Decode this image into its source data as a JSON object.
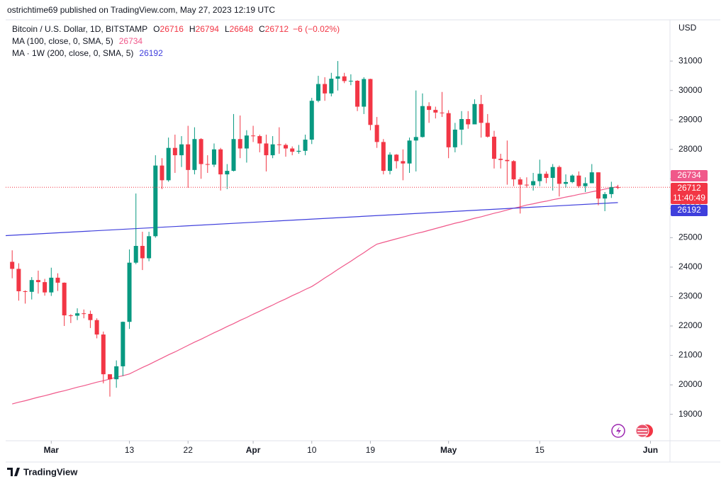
{
  "header": "ostrichtime69 published on TradingView.com, May 27, 2023 12:19 UTC",
  "footer": "TradingView",
  "chart_data": {
    "type": "candlestick",
    "title": "Bitcoin / U.S. Dollar, 1D, BITSTAMP",
    "ohlc_legend": [
      {
        "label": "O",
        "value": 26716
      },
      {
        "label": "H",
        "value": 26794
      },
      {
        "label": "L",
        "value": 26648
      },
      {
        "label": "C",
        "value": 26712
      }
    ],
    "change_label": "−6 (−0.02%)",
    "countdown": "11:40:49",
    "y_axis_label": "USD",
    "up_color": "#089981",
    "down_color": "#f23645",
    "x": [
      "2023-02-23",
      "2023-02-24",
      "2023-02-25",
      "2023-02-26",
      "2023-02-27",
      "2023-02-28",
      "2023-03-01",
      "2023-03-02",
      "2023-03-03",
      "2023-03-04",
      "2023-03-05",
      "2023-03-06",
      "2023-03-07",
      "2023-03-08",
      "2023-03-09",
      "2023-03-10",
      "2023-03-11",
      "2023-03-12",
      "2023-03-13",
      "2023-03-14",
      "2023-03-15",
      "2023-03-16",
      "2023-03-17",
      "2023-03-18",
      "2023-03-19",
      "2023-03-20",
      "2023-03-21",
      "2023-03-22",
      "2023-03-23",
      "2023-03-24",
      "2023-03-25",
      "2023-03-26",
      "2023-03-27",
      "2023-03-28",
      "2023-03-29",
      "2023-03-30",
      "2023-03-31",
      "2023-04-01",
      "2023-04-02",
      "2023-04-03",
      "2023-04-04",
      "2023-04-05",
      "2023-04-06",
      "2023-04-07",
      "2023-04-08",
      "2023-04-09",
      "2023-04-10",
      "2023-04-11",
      "2023-04-12",
      "2023-04-13",
      "2023-04-14",
      "2023-04-15",
      "2023-04-16",
      "2023-04-17",
      "2023-04-18",
      "2023-04-19",
      "2023-04-20",
      "2023-04-21",
      "2023-04-22",
      "2023-04-23",
      "2023-04-24",
      "2023-04-25",
      "2023-04-26",
      "2023-04-27",
      "2023-04-28",
      "2023-04-29",
      "2023-04-30",
      "2023-05-01",
      "2023-05-02",
      "2023-05-03",
      "2023-05-04",
      "2023-05-05",
      "2023-05-06",
      "2023-05-07",
      "2023-05-08",
      "2023-05-09",
      "2023-05-10",
      "2023-05-11",
      "2023-05-12",
      "2023-05-13",
      "2023-05-14",
      "2023-05-15",
      "2023-05-16",
      "2023-05-17",
      "2023-05-18",
      "2023-05-19",
      "2023-05-20",
      "2023-05-21",
      "2023-05-22",
      "2023-05-23",
      "2023-05-24",
      "2023-05-25",
      "2023-05-26",
      "2023-05-27"
    ],
    "open": [
      24180,
      23940,
      23180,
      23160,
      23560,
      23490,
      23140,
      23640,
      23470,
      22360,
      22350,
      22430,
      22410,
      22200,
      21710,
      20360,
      20190,
      20630,
      22140,
      24150,
      24720,
      24300,
      25050,
      27450,
      26950,
      28050,
      27800,
      28170,
      27300,
      28350,
      27500,
      27480,
      28000,
      27150,
      27270,
      28350,
      28030,
      28470,
      28450,
      28200,
      27800,
      28170,
      28150,
      28030,
      27920,
      27950,
      28330,
      29650,
      30220,
      29900,
      30400,
      30480,
      30320,
      30330,
      29450,
      30390,
      28830,
      28250,
      27270,
      27820,
      27600,
      27520,
      28300,
      28420,
      29470,
      29340,
      29250,
      29230,
      28070,
      28670,
      29030,
      28850,
      29540,
      28900,
      28430,
      27680,
      27640,
      27600,
      26980,
      26800,
      26780,
      26920,
      27170,
      27030,
      27400,
      26830,
      26890,
      27110,
      26750,
      26850,
      27220,
      26330,
      26480,
      26716
    ],
    "high": [
      24570,
      24130,
      23210,
      23660,
      23880,
      23600,
      23980,
      23790,
      23480,
      22400,
      22600,
      22560,
      22520,
      22260,
      21810,
      20360,
      20830,
      22150,
      24600,
      26500,
      25200,
      25200,
      27800,
      27700,
      28400,
      28500,
      28450,
      28800,
      28750,
      28380,
      27800,
      28200,
      28050,
      27500,
      29200,
      29150,
      28650,
      28800,
      28500,
      28500,
      28450,
      28750,
      28200,
      28100,
      28150,
      28500,
      29750,
      30500,
      30450,
      30600,
      31000,
      30600,
      30550,
      30350,
      30450,
      30400,
      29100,
      28350,
      27900,
      27840,
      28000,
      28400,
      30000,
      29900,
      29600,
      29450,
      29950,
      29330,
      28900,
      29300,
      29300,
      29700,
      29850,
      29200,
      28630,
      27850,
      28300,
      27630,
      27050,
      27050,
      27200,
      27650,
      27250,
      27500,
      27450,
      27150,
      27150,
      27250,
      27050,
      27500,
      27220,
      26550,
      26900,
      26794
    ],
    "low": [
      23620,
      22860,
      22760,
      22900,
      23100,
      23030,
      23020,
      23190,
      22000,
      22100,
      22200,
      22260,
      21930,
      21580,
      20050,
      19600,
      19900,
      20300,
      21900,
      24100,
      23900,
      24200,
      25000,
      26650,
      26900,
      27200,
      27400,
      26700,
      27150,
      27000,
      27200,
      27400,
      26600,
      26650,
      27250,
      27700,
      27550,
      28250,
      27900,
      27250,
      27700,
      27850,
      27750,
      27800,
      27850,
      27800,
      28180,
      29600,
      29650,
      29800,
      30000,
      30250,
      30180,
      29300,
      29200,
      28650,
      28050,
      27150,
      27150,
      27350,
      26950,
      27200,
      27250,
      28400,
      28900,
      29050,
      29100,
      27700,
      27900,
      28150,
      28700,
      28850,
      28400,
      28400,
      27350,
      27350,
      26800,
      26750,
      25820,
      26700,
      26600,
      26750,
      26850,
      26600,
      26400,
      26700,
      26850,
      26700,
      26550,
      26850,
      26100,
      25900,
      26350,
      26648
    ],
    "close": [
      23940,
      23180,
      23160,
      23560,
      23490,
      23140,
      23640,
      23470,
      22360,
      22350,
      22430,
      22410,
      22200,
      21710,
      20360,
      20190,
      20630,
      22140,
      24150,
      24720,
      24300,
      25050,
      27450,
      26950,
      28050,
      27800,
      28170,
      27300,
      28350,
      27500,
      27480,
      28000,
      27150,
      27270,
      28350,
      28030,
      28470,
      28450,
      28200,
      27800,
      28170,
      28150,
      28030,
      27920,
      27950,
      28330,
      29650,
      30220,
      29900,
      30400,
      30480,
      30320,
      30330,
      29450,
      30390,
      28830,
      28250,
      27270,
      27820,
      27600,
      27520,
      28300,
      28420,
      29470,
      29340,
      29250,
      29230,
      28070,
      28670,
      29030,
      28850,
      29540,
      28900,
      28430,
      27680,
      27640,
      27600,
      26980,
      26800,
      26780,
      26920,
      27170,
      27030,
      27400,
      26830,
      26890,
      27110,
      26750,
      26850,
      27220,
      26330,
      26480,
      26720,
      26712
    ],
    "series": [
      {
        "name": "MA (100, close, 0, SMA, 5)",
        "color": "#f0588a",
        "values": [
          19350,
          19410,
          19460,
          19520,
          19580,
          19630,
          19690,
          19750,
          19800,
          19860,
          19920,
          19970,
          20030,
          20090,
          20140,
          20200,
          20260,
          20310,
          20370,
          20480,
          20590,
          20690,
          20800,
          20910,
          21020,
          21120,
          21230,
          21340,
          21450,
          21550,
          21660,
          21770,
          21870,
          21980,
          22080,
          22190,
          22290,
          22400,
          22500,
          22610,
          22710,
          22820,
          22920,
          23030,
          23130,
          23240,
          23340,
          23480,
          23630,
          23770,
          23920,
          24060,
          24200,
          24350,
          24490,
          24640,
          24780,
          24840,
          24900,
          24960,
          25020,
          25080,
          25140,
          25190,
          25250,
          25310,
          25370,
          25430,
          25490,
          25540,
          25600,
          25660,
          25710,
          25770,
          25830,
          25880,
          25940,
          26000,
          26050,
          26110,
          26150,
          26200,
          26240,
          26290,
          26330,
          26380,
          26420,
          26470,
          26510,
          26560,
          26600,
          26650,
          26690,
          26734
        ]
      },
      {
        "name": "MA · 1W (200, close, 0, SMA, 5)",
        "color": "#3f3fdc",
        "x": [
          "2023-02-22",
          "2023-05-27"
        ],
        "values": [
          25070,
          26192
        ]
      }
    ],
    "xlim": [
      "2023-02-22",
      "2023-06-04"
    ],
    "xticks": [
      {
        "value": "2023-03-01",
        "label": "Mar"
      },
      {
        "value": "2023-03-13",
        "label": "13"
      },
      {
        "value": "2023-03-22",
        "label": "22"
      },
      {
        "value": "2023-04-01",
        "label": "Apr"
      },
      {
        "value": "2023-04-10",
        "label": "10"
      },
      {
        "value": "2023-04-19",
        "label": "19"
      },
      {
        "value": "2023-05-01",
        "label": "May"
      },
      {
        "value": "2023-05-15",
        "label": "15"
      },
      {
        "value": "2023-06-01",
        "label": "Jun"
      }
    ],
    "ylim": [
      18100,
      32400
    ],
    "yticks": [
      19000,
      20000,
      21000,
      22000,
      23000,
      24000,
      25000,
      26000,
      27000,
      28000,
      29000,
      30000,
      31000
    ],
    "grid": false
  }
}
